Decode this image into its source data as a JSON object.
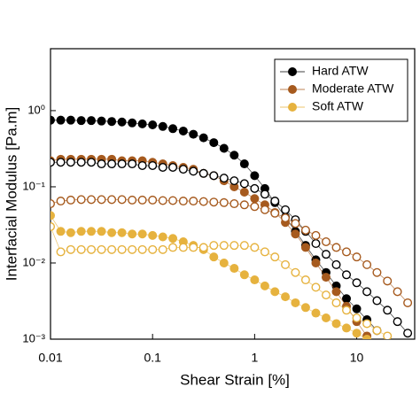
{
  "chart_data": {
    "type": "scatter",
    "xlabel": "Shear Strain [%]",
    "ylabel": "Interfacial Modulus [Pa.m]",
    "xscale": "log",
    "yscale": "log",
    "legend": "upper right",
    "xlim": [
      0.01,
      37
    ],
    "ylim": [
      0.001,
      6.5
    ],
    "xticks": [
      0.01,
      0.1,
      1,
      10
    ],
    "yticks": [
      {
        "value": 0.001,
        "label": "10⁻³"
      },
      {
        "value": 0.01,
        "label": "10⁻²"
      },
      {
        "value": 0.1,
        "label": "10⁻¹"
      },
      {
        "value": 1,
        "label": "10⁰"
      }
    ],
    "x": [
      0.01,
      0.0126,
      0.0158,
      0.02,
      0.0251,
      0.0316,
      0.0398,
      0.0501,
      0.0631,
      0.0794,
      0.1,
      0.126,
      0.158,
      0.2,
      0.251,
      0.316,
      0.398,
      0.501,
      0.631,
      0.794,
      1,
      1.26,
      1.58,
      2,
      2.51,
      3.16,
      3.98,
      5.01,
      6.31,
      7.94,
      10,
      12.6,
      15.8,
      20,
      25.1,
      31.6
    ],
    "series": [
      {
        "name": "Hard ATW",
        "color": "#000000",
        "marker": "filled",
        "values": [
          0.75,
          0.75,
          0.75,
          0.74,
          0.74,
          0.73,
          0.72,
          0.71,
          0.69,
          0.67,
          0.65,
          0.62,
          0.58,
          0.54,
          0.49,
          0.44,
          0.38,
          0.32,
          0.26,
          0.2,
          0.14,
          0.095,
          0.062,
          0.04,
          0.026,
          0.017,
          0.011,
          0.0075,
          0.005,
          0.0034,
          0.0025,
          0.0018,
          0.0013,
          null,
          null,
          null
        ]
      },
      {
        "name": "Moderate ATW",
        "color": "#a65a1e",
        "marker": "filled",
        "values": [
          0.22,
          0.23,
          0.23,
          0.23,
          0.23,
          0.23,
          0.23,
          0.22,
          0.22,
          0.22,
          0.21,
          0.2,
          0.19,
          0.18,
          0.17,
          0.15,
          0.14,
          0.12,
          0.1,
          0.085,
          0.07,
          0.058,
          0.046,
          0.034,
          0.024,
          0.016,
          0.01,
          0.0065,
          0.0042,
          0.0027,
          0.0017,
          0.0011,
          null,
          null,
          null,
          null
        ]
      },
      {
        "name": "Soft ATW",
        "color": "#e6b23e",
        "marker": "filled",
        "values": [
          0.042,
          0.026,
          0.025,
          0.026,
          0.026,
          0.026,
          0.025,
          0.025,
          0.024,
          0.024,
          0.023,
          0.022,
          0.021,
          0.019,
          0.017,
          0.015,
          0.012,
          0.01,
          0.0085,
          0.007,
          0.006,
          0.005,
          0.0042,
          0.0036,
          0.003,
          0.0026,
          0.0022,
          0.0019,
          0.0016,
          0.0014,
          0.0012,
          0.001,
          null,
          null,
          null,
          null
        ]
      },
      {
        "color": "#000000",
        "marker": "open",
        "values": [
          0.21,
          0.21,
          0.21,
          0.21,
          0.21,
          0.2,
          0.2,
          0.2,
          0.2,
          0.19,
          0.19,
          0.18,
          0.18,
          0.17,
          0.16,
          0.15,
          0.14,
          0.13,
          0.12,
          0.11,
          0.095,
          0.08,
          0.065,
          0.05,
          0.037,
          0.026,
          0.018,
          0.013,
          0.0095,
          0.007,
          0.0055,
          0.0042,
          0.0032,
          0.0024,
          0.0017,
          0.0012
        ]
      },
      {
        "color": "#a65a1e",
        "marker": "open",
        "values": [
          0.06,
          0.065,
          0.067,
          0.068,
          0.068,
          0.068,
          0.068,
          0.068,
          0.067,
          0.067,
          0.067,
          0.066,
          0.066,
          0.065,
          0.065,
          0.064,
          0.063,
          0.062,
          0.06,
          0.058,
          0.055,
          0.05,
          0.045,
          0.039,
          0.033,
          0.027,
          0.023,
          0.019,
          0.016,
          0.014,
          0.012,
          0.0095,
          0.0075,
          0.0058,
          0.0042,
          0.003
        ]
      },
      {
        "color": "#e6b23e",
        "marker": "open",
        "values": [
          0.03,
          0.014,
          0.015,
          0.015,
          0.015,
          0.015,
          0.015,
          0.015,
          0.015,
          0.015,
          0.015,
          0.015,
          0.016,
          0.016,
          0.016,
          0.016,
          0.017,
          0.017,
          0.017,
          0.017,
          0.016,
          0.014,
          0.012,
          0.0095,
          0.0075,
          0.006,
          0.0048,
          0.0038,
          0.003,
          0.0024,
          0.0019,
          0.0016,
          0.0013,
          0.0011,
          null,
          null
        ]
      }
    ]
  }
}
